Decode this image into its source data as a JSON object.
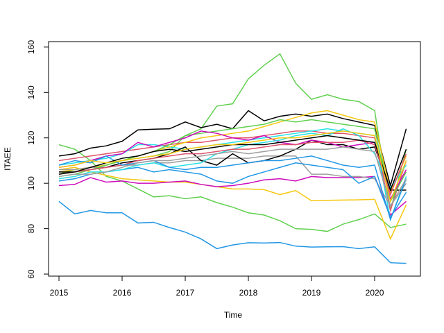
{
  "chart_data": {
    "type": "line",
    "x_label": "Time",
    "y_label": "ITAEE",
    "x": [
      2015,
      2015.25,
      2015.5,
      2015.75,
      2016,
      2016.25,
      2016.5,
      2016.75,
      2017,
      2017.25,
      2017.5,
      2017.75,
      2018,
      2018.25,
      2018.5,
      2018.75,
      2019,
      2019.25,
      2019.5,
      2019.75,
      2020,
      2020.25,
      2020.5
    ],
    "xlim": [
      2014.835,
      2020.725
    ],
    "xticks": [
      2015,
      2016,
      2017,
      2018,
      2019,
      2020
    ],
    "ylim": [
      59.1,
      162.4
    ],
    "yticks": [
      60,
      80,
      100,
      120,
      140,
      160
    ],
    "series": [
      {
        "color": "#61D04F",
        "values": [
          104,
          106,
          107,
          108,
          110,
          111,
          112,
          114,
          121,
          124,
          134,
          135,
          146,
          152,
          157,
          144,
          137,
          139,
          137,
          136,
          132,
          88,
          115
        ]
      },
      {
        "color": "#2297E6",
        "values": [
          92,
          86.5,
          88,
          87,
          87,
          82.5,
          82.8,
          80.5,
          78.5,
          75.5,
          71.2,
          72.8,
          73.8,
          73.7,
          73.9,
          72.3,
          71.9,
          72,
          72.1,
          71.2,
          72,
          65,
          64.7
        ]
      },
      {
        "color": "#61D04F",
        "values": [
          117,
          115,
          110,
          103,
          101,
          97.5,
          94,
          94.5,
          93.2,
          94,
          91.5,
          89.5,
          87,
          86,
          83.5,
          80,
          79.7,
          78.8,
          82,
          84,
          86.5,
          80.5,
          82
        ]
      },
      {
        "color": "#F5C710",
        "values": [
          106,
          107,
          105,
          103.5,
          102,
          101.5,
          101,
          100.5,
          100.5,
          99.5,
          98.5,
          97.5,
          97.5,
          97.2,
          95,
          96.8,
          92.3,
          92.5,
          92.6,
          92.7,
          92.9,
          75.5,
          90.5
        ]
      },
      {
        "color": "#000000",
        "values": [
          112,
          113,
          115.5,
          116.5,
          118.5,
          123.5,
          123.8,
          124,
          127,
          124.5,
          126,
          124,
          132,
          127.5,
          129.5,
          130.5,
          129.5,
          130.5,
          128.5,
          127,
          125.5,
          99,
          124
        ]
      },
      {
        "color": "#CD0BBC",
        "values": [
          99,
          99.5,
          102.5,
          100.5,
          101,
          100,
          100,
          100.5,
          101,
          99.5,
          98.5,
          99,
          100,
          101.5,
          102,
          101,
          103,
          102.5,
          102.5,
          102.5,
          103,
          86,
          92
        ]
      },
      {
        "color": "#DF536B",
        "values": [
          110,
          111,
          112,
          113,
          114,
          115,
          116,
          117,
          118,
          118,
          119,
          120,
          120,
          121,
          122,
          123,
          123,
          122,
          122,
          121,
          120,
          88,
          110
        ]
      },
      {
        "color": "#28E2E5",
        "values": [
          108,
          109,
          110,
          111,
          113,
          117,
          117,
          116,
          115,
          116,
          117,
          118,
          119,
          120,
          121,
          122,
          123,
          124,
          123,
          122,
          121,
          84,
          103
        ]
      },
      {
        "color": "#F5C710",
        "values": [
          105,
          106,
          107,
          108,
          110,
          112,
          114,
          116,
          118,
          120,
          121,
          122,
          123,
          125,
          127,
          129,
          131,
          132,
          130,
          128,
          127,
          96,
          112
        ]
      },
      {
        "color": "#9E9E9E",
        "values": [
          106,
          106,
          107,
          107,
          108,
          108,
          109,
          109,
          110,
          110,
          111,
          111,
          111,
          112,
          112,
          112,
          104,
          104,
          103,
          103,
          102,
          90,
          100
        ]
      },
      {
        "color": "#2297E6",
        "values": [
          101,
          102,
          104,
          105,
          106,
          107,
          105,
          106,
          105,
          104,
          101,
          100,
          103,
          105,
          107,
          109,
          108,
          107,
          106,
          100,
          103,
          85,
          96
        ]
      },
      {
        "color": "#000000",
        "values": [
          105,
          105,
          106,
          107,
          109,
          110,
          111,
          113,
          116,
          110,
          108,
          113,
          109,
          110,
          112,
          115,
          119,
          117,
          117,
          115,
          116,
          97,
          97
        ]
      },
      {
        "color": "#61D04F",
        "values": [
          103,
          104,
          106,
          108,
          110,
          112,
          114,
          117,
          121,
          122,
          123,
          124,
          125,
          126,
          128,
          127,
          128,
          127,
          126,
          125,
          124,
          92,
          105
        ]
      },
      {
        "color": "#CD0BBC",
        "values": [
          107,
          108,
          110,
          112,
          113,
          118,
          116,
          118,
          120,
          123,
          122,
          120,
          119,
          121,
          118,
          117,
          119,
          118,
          116,
          117,
          118,
          93,
          106
        ]
      },
      {
        "color": "#28E2E5",
        "values": [
          102,
          103,
          105,
          105,
          106,
          108,
          109,
          107,
          108,
          109,
          113,
          115,
          117,
          118,
          119,
          121,
          122,
          121,
          124,
          121,
          113,
          98,
          108
        ]
      },
      {
        "color": "#DF536B",
        "values": [
          104,
          105,
          106,
          107,
          108,
          110,
          111,
          112,
          113,
          113,
          114,
          115,
          115,
          116,
          117,
          117,
          118,
          118,
          118,
          119,
          117,
          95,
          113
        ]
      },
      {
        "color": "#2297E6",
        "values": [
          108,
          110,
          109,
          112,
          108,
          109,
          110,
          107,
          106,
          107,
          107,
          108,
          109,
          110,
          110,
          111,
          112,
          110,
          108,
          107,
          108,
          84,
          102
        ]
      },
      {
        "color": "#000000",
        "values": [
          104,
          105,
          107,
          109,
          111,
          112,
          114,
          115,
          114,
          115,
          116,
          117,
          117,
          117,
          118,
          119,
          120,
          121,
          120,
          119,
          118,
          97,
          115
        ]
      },
      {
        "color": "#9E9E9E",
        "values": [
          103,
          104,
          104,
          105,
          107,
          109,
          110,
          110,
          111,
          112,
          113,
          114,
          113,
          114,
          115,
          115,
          115,
          115,
          116,
          115,
          114,
          90,
          102
        ]
      },
      {
        "color": "#F5C710",
        "values": [
          107,
          108,
          110,
          109,
          110,
          111,
          112,
          113,
          115,
          116,
          117,
          117,
          118,
          119,
          120,
          120,
          121,
          122,
          123,
          122,
          121,
          92,
          110
        ]
      }
    ]
  }
}
